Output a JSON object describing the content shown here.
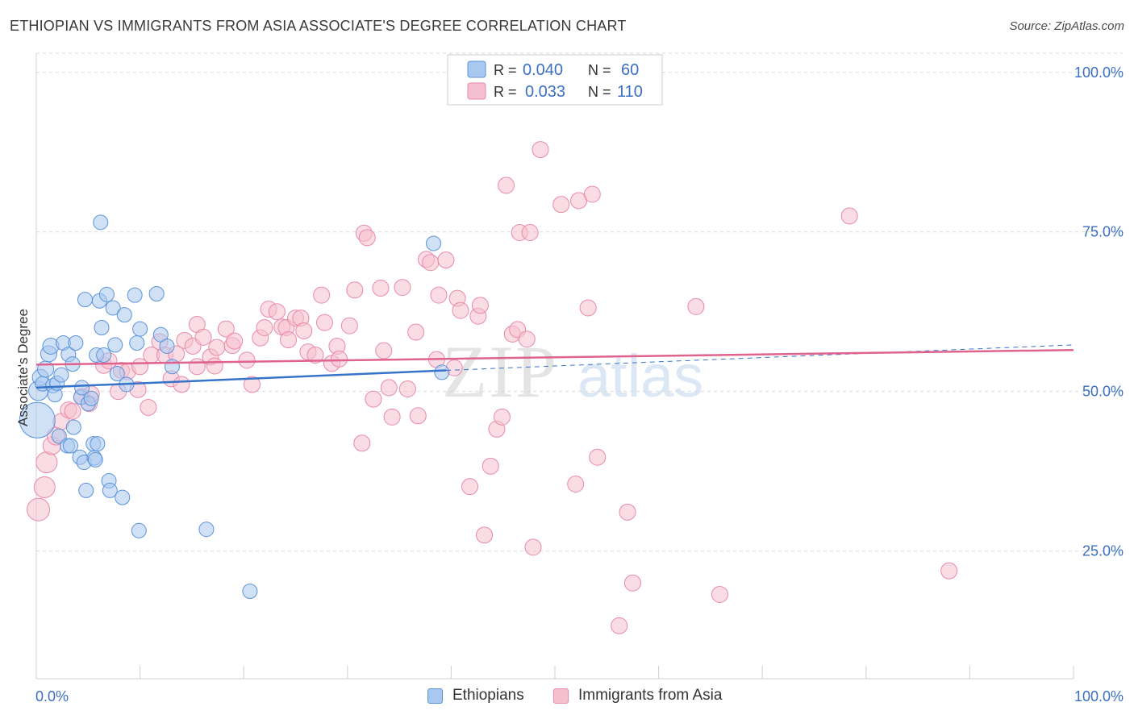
{
  "title": "ETHIOPIAN VS IMMIGRANTS FROM ASIA ASSOCIATE'S DEGREE CORRELATION CHART",
  "source": "Source: ZipAtlas.com",
  "watermark": {
    "zip": "ZIP",
    "atlas": "atlas"
  },
  "colors": {
    "blue_fill": "#a9c8ef",
    "blue_stroke": "#5b93db",
    "blue_line": "#3674c9",
    "pink_fill": "#f6bfd0",
    "pink_stroke": "#e88aa8",
    "pink_line": "#e0638e",
    "axis_text": "#3a6fc4",
    "grid": "#d9d9d9"
  },
  "legend_box": {
    "rows": [
      {
        "r_label": "R =",
        "r_value": "0.040",
        "n_label": "N =",
        "n_value": "60"
      },
      {
        "r_label": "R =",
        "r_value": "0.033",
        "n_label": "N =",
        "n_value": "110"
      }
    ]
  },
  "legend_bottom": {
    "series1": "Ethiopians",
    "series2": "Immigrants from Asia"
  },
  "chart_data": {
    "type": "scatter",
    "title": "ETHIOPIAN VS IMMIGRANTS FROM ASIA ASSOCIATE'S DEGREE CORRELATION CHART",
    "xlabel": "",
    "ylabel": "Associate's Degree",
    "xlim": [
      0,
      100
    ],
    "ylim": [
      5,
      103
    ],
    "x_tick_labels": [
      "0.0%",
      "100.0%"
    ],
    "y_ticks": [
      25,
      50,
      75,
      100
    ],
    "y_tick_labels": [
      "25.0%",
      "50.0%",
      "75.0%",
      "100.0%"
    ],
    "grid": "horizontal dashed",
    "legend": "top-center",
    "series": [
      {
        "name": "Ethiopians",
        "r": 0.04,
        "n": 60,
        "trend": {
          "x1": 0,
          "y1": 50.6,
          "x2": 39.5,
          "y2": 53.3,
          "dashed_to": {
            "x": 100,
            "y": 57.3
          }
        },
        "points": [
          [
            0.1,
            45.5,
            22
          ],
          [
            0.2,
            50.1,
            12
          ],
          [
            0.4,
            52.2,
            10
          ],
          [
            0.6,
            51.2,
            9
          ],
          [
            0.9,
            53.5,
            10
          ],
          [
            1.2,
            55.9,
            10
          ],
          [
            1.4,
            57.1,
            10
          ],
          [
            1.6,
            50.9,
            9
          ],
          [
            1.8,
            49.5,
            9
          ],
          [
            2.0,
            51.3,
            9
          ],
          [
            2.2,
            43.0,
            9
          ],
          [
            2.4,
            52.6,
            9
          ],
          [
            2.6,
            57.6,
            9
          ],
          [
            3.0,
            41.5,
            9
          ],
          [
            3.1,
            55.8,
            9
          ],
          [
            3.3,
            41.5,
            9
          ],
          [
            3.5,
            54.3,
            9
          ],
          [
            3.6,
            44.4,
            9
          ],
          [
            3.8,
            57.6,
            9
          ],
          [
            4.2,
            39.7,
            9
          ],
          [
            4.3,
            49.1,
            9
          ],
          [
            4.4,
            50.6,
            9
          ],
          [
            4.6,
            38.9,
            9
          ],
          [
            4.7,
            64.4,
            9
          ],
          [
            4.8,
            34.5,
            9
          ],
          [
            5.0,
            48.1,
            9
          ],
          [
            5.3,
            48.9,
            9
          ],
          [
            5.5,
            41.8,
            9
          ],
          [
            5.6,
            39.6,
            9
          ],
          [
            5.7,
            39.3,
            9
          ],
          [
            5.8,
            55.7,
            9
          ],
          [
            5.9,
            41.8,
            9
          ],
          [
            6.1,
            64.2,
            9
          ],
          [
            6.2,
            76.5,
            9
          ],
          [
            6.3,
            60.0,
            9
          ],
          [
            6.5,
            55.7,
            9
          ],
          [
            6.8,
            65.2,
            9
          ],
          [
            7.0,
            36.0,
            9
          ],
          [
            7.1,
            34.5,
            9
          ],
          [
            7.4,
            63.1,
            9
          ],
          [
            7.6,
            57.3,
            9
          ],
          [
            7.8,
            52.8,
            9
          ],
          [
            8.3,
            33.4,
            9
          ],
          [
            8.5,
            62.0,
            9
          ],
          [
            8.7,
            51.1,
            9
          ],
          [
            9.5,
            65.1,
            9
          ],
          [
            9.7,
            57.6,
            9
          ],
          [
            9.9,
            28.2,
            9
          ],
          [
            10.0,
            59.8,
            9
          ],
          [
            11.6,
            65.3,
            9
          ],
          [
            12.0,
            58.9,
            9
          ],
          [
            12.6,
            57.1,
            9
          ],
          [
            13.1,
            53.9,
            9
          ],
          [
            16.4,
            28.4,
            9
          ],
          [
            20.6,
            18.7,
            9
          ],
          [
            38.3,
            73.2,
            9
          ],
          [
            39.1,
            53.0,
            9
          ]
        ]
      },
      {
        "name": "Immigrants from Asia",
        "r": 0.033,
        "n": 110,
        "trend": {
          "x1": 0,
          "y1": 54.2,
          "x2": 100,
          "y2": 56.5
        },
        "points": [
          [
            0.2,
            31.5,
            14
          ],
          [
            0.8,
            35.0,
            13
          ],
          [
            1.0,
            38.9,
            13
          ],
          [
            1.5,
            41.5,
            11
          ],
          [
            1.9,
            43.0,
            11
          ],
          [
            2.4,
            45.3,
            10
          ],
          [
            3.1,
            47.1,
            10
          ],
          [
            3.5,
            46.9,
            10
          ],
          [
            4.4,
            49.2,
            10
          ],
          [
            5.1,
            48.1,
            10
          ],
          [
            5.3,
            49.6,
            10
          ],
          [
            6.5,
            54.1,
            10
          ],
          [
            7.0,
            54.8,
            10
          ],
          [
            7.9,
            50.0,
            10
          ],
          [
            8.2,
            53.3,
            10
          ],
          [
            8.8,
            53.1,
            10
          ],
          [
            9.8,
            50.3,
            10
          ],
          [
            10.0,
            53.9,
            10
          ],
          [
            10.8,
            47.5,
            10
          ],
          [
            11.1,
            55.7,
            10
          ],
          [
            11.9,
            57.8,
            10
          ],
          [
            12.4,
            55.7,
            10
          ],
          [
            13.0,
            52.0,
            10
          ],
          [
            13.5,
            55.9,
            10
          ],
          [
            14.0,
            51.1,
            10
          ],
          [
            14.3,
            58.0,
            10
          ],
          [
            15.1,
            57.1,
            10
          ],
          [
            15.5,
            53.9,
            10
          ],
          [
            15.5,
            60.5,
            10
          ],
          [
            16.1,
            58.5,
            10
          ],
          [
            16.8,
            55.4,
            10
          ],
          [
            17.2,
            54.0,
            10
          ],
          [
            17.4,
            56.9,
            10
          ],
          [
            18.3,
            59.8,
            10
          ],
          [
            18.9,
            57.2,
            10
          ],
          [
            19.1,
            57.9,
            10
          ],
          [
            20.3,
            54.9,
            10
          ],
          [
            20.8,
            51.1,
            10
          ],
          [
            21.6,
            58.4,
            10
          ],
          [
            22.0,
            60.0,
            10
          ],
          [
            22.4,
            62.9,
            10
          ],
          [
            23.2,
            62.5,
            10
          ],
          [
            23.7,
            60.1,
            10
          ],
          [
            24.1,
            60.0,
            10
          ],
          [
            24.3,
            58.1,
            10
          ],
          [
            25.0,
            61.5,
            10
          ],
          [
            25.5,
            61.5,
            10
          ],
          [
            25.8,
            59.5,
            10
          ],
          [
            26.2,
            56.2,
            10
          ],
          [
            26.9,
            55.7,
            10
          ],
          [
            27.5,
            65.1,
            10
          ],
          [
            27.8,
            60.8,
            10
          ],
          [
            28.5,
            54.4,
            10
          ],
          [
            29.0,
            57.1,
            10
          ],
          [
            29.2,
            55.1,
            10
          ],
          [
            30.2,
            60.3,
            10
          ],
          [
            30.7,
            65.9,
            10
          ],
          [
            31.4,
            41.9,
            10
          ],
          [
            31.6,
            74.8,
            10
          ],
          [
            31.9,
            74.1,
            10
          ],
          [
            32.5,
            48.8,
            10
          ],
          [
            33.2,
            66.2,
            10
          ],
          [
            33.5,
            56.4,
            10
          ],
          [
            34.0,
            50.6,
            10
          ],
          [
            34.3,
            46.0,
            10
          ],
          [
            35.3,
            66.3,
            10
          ],
          [
            35.8,
            50.4,
            10
          ],
          [
            36.6,
            59.3,
            10
          ],
          [
            36.8,
            46.2,
            10
          ],
          [
            37.6,
            70.7,
            10
          ],
          [
            38.0,
            70.2,
            10
          ],
          [
            38.6,
            55.0,
            10
          ],
          [
            38.8,
            65.1,
            10
          ],
          [
            39.5,
            70.6,
            10
          ],
          [
            40.3,
            53.7,
            10
          ],
          [
            40.6,
            64.6,
            10
          ],
          [
            40.9,
            62.7,
            10
          ],
          [
            41.8,
            35.1,
            10
          ],
          [
            42.6,
            61.8,
            10
          ],
          [
            42.8,
            63.5,
            10
          ],
          [
            43.2,
            27.5,
            10
          ],
          [
            43.8,
            38.3,
            10
          ],
          [
            44.4,
            44.1,
            10
          ],
          [
            44.9,
            46.0,
            10
          ],
          [
            45.3,
            82.3,
            10
          ],
          [
            45.9,
            59.0,
            10
          ],
          [
            46.4,
            59.7,
            10
          ],
          [
            46.6,
            74.9,
            10
          ],
          [
            47.3,
            58.2,
            10
          ],
          [
            47.6,
            74.9,
            10
          ],
          [
            47.9,
            25.6,
            10
          ],
          [
            48.6,
            87.9,
            10
          ],
          [
            50.6,
            79.3,
            10
          ],
          [
            52.0,
            35.5,
            10
          ],
          [
            52.3,
            79.9,
            10
          ],
          [
            53.2,
            63.1,
            10
          ],
          [
            53.6,
            80.9,
            10
          ],
          [
            54.1,
            39.7,
            10
          ],
          [
            56.2,
            13.3,
            10
          ],
          [
            57.0,
            31.1,
            10
          ],
          [
            57.5,
            20.0,
            10
          ],
          [
            63.6,
            63.3,
            10
          ],
          [
            65.9,
            18.2,
            10
          ],
          [
            78.4,
            77.5,
            10
          ],
          [
            88.0,
            21.9,
            10
          ]
        ]
      }
    ]
  }
}
